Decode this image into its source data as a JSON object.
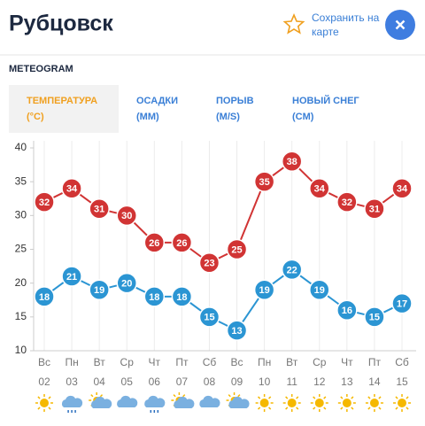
{
  "header": {
    "city": "Рубцовск",
    "save": [
      "Сохранить на",
      "карте"
    ]
  },
  "section": "METEOGRAM",
  "tabs": [
    {
      "label": "ТЕМПЕРАТУРА",
      "unit": "(°C)"
    },
    {
      "label": "ОСАДКИ",
      "unit": "(MM)"
    },
    {
      "label": "ПОРЫВ",
      "unit": "(M/S)"
    },
    {
      "label": "НОВЫЙ СНЕГ",
      "unit": "(CM)"
    }
  ],
  "chart_data": {
    "type": "line",
    "categories": [
      "Вс",
      "Пн",
      "Вт",
      "Ср",
      "Чт",
      "Пт",
      "Сб",
      "Вс",
      "Пн",
      "Вт",
      "Ср",
      "Чт",
      "Пт",
      "Сб"
    ],
    "dates": [
      "02",
      "03",
      "04",
      "05",
      "06",
      "07",
      "08",
      "09",
      "10",
      "11",
      "12",
      "13",
      "14",
      "15"
    ],
    "series": [
      {
        "color": "#d13434",
        "values": [
          32,
          34,
          31,
          30,
          26,
          26,
          23,
          25,
          35,
          38,
          34,
          32,
          31,
          34
        ]
      },
      {
        "color": "#2b95d3",
        "values": [
          18,
          21,
          19,
          20,
          18,
          18,
          15,
          13,
          19,
          22,
          19,
          16,
          15,
          17
        ]
      }
    ],
    "ylim": [
      10,
      40
    ],
    "yticks": [
      10,
      15,
      20,
      25,
      30,
      35,
      40
    ],
    "grid": true
  }
}
